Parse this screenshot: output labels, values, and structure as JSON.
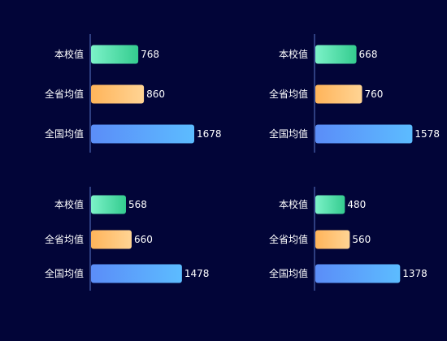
{
  "colors": {
    "background": "#020538",
    "axis": "#5b78c9",
    "school_start": "#7cf2c8",
    "school_end": "#34cc8f",
    "province_start": "#ffb45a",
    "province_end": "#ffd494",
    "national_start": "#5b8df8",
    "national_end": "#5cbcff"
  },
  "chart_data": [
    {
      "type": "bar",
      "orientation": "horizontal",
      "categories": [
        "本校值",
        "全省均值",
        "全国均值"
      ],
      "values": [
        768,
        860,
        1678
      ],
      "xlim": [
        0,
        1700
      ]
    },
    {
      "type": "bar",
      "orientation": "horizontal",
      "categories": [
        "本校值",
        "全省均值",
        "全国均值"
      ],
      "values": [
        668,
        760,
        1578
      ],
      "xlim": [
        0,
        1700
      ]
    },
    {
      "type": "bar",
      "orientation": "horizontal",
      "categories": [
        "本校值",
        "全省均值",
        "全国均值"
      ],
      "values": [
        568,
        660,
        1478
      ],
      "xlim": [
        0,
        1700
      ]
    },
    {
      "type": "bar",
      "orientation": "horizontal",
      "categories": [
        "本校值",
        "全省均值",
        "全国均值"
      ],
      "values": [
        480,
        560,
        1378
      ],
      "xlim": [
        0,
        1700
      ]
    }
  ]
}
